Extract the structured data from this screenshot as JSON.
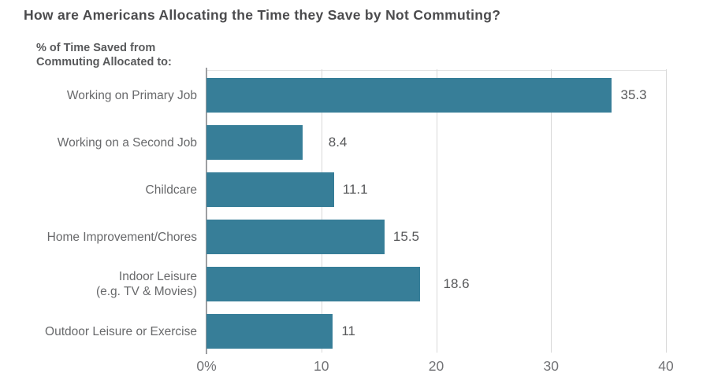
{
  "chart_data": {
    "type": "bar",
    "orientation": "horizontal",
    "title": "How are Americans Allocating the Time they Save by Not Commuting?",
    "axis_note": "% of Time Saved from\nCommuting Allocated to:",
    "categories": [
      "Working on Primary Job",
      "Working on a Second Job",
      "Childcare",
      "Home Improvement/Chores",
      "Indoor Leisure\n(e.g. TV & Movies)",
      "Outdoor Leisure or Exercise"
    ],
    "values": [
      35.3,
      8.4,
      11.1,
      15.5,
      18.6,
      11
    ],
    "value_labels": [
      "35.3",
      "8.4",
      "11.1",
      "15.5",
      "18.6",
      "11"
    ],
    "x_ticks": [
      {
        "value": 0,
        "label": "0%"
      },
      {
        "value": 10,
        "label": "10"
      },
      {
        "value": 20,
        "label": "20"
      },
      {
        "value": 30,
        "label": "30"
      },
      {
        "value": 40,
        "label": "40"
      }
    ],
    "xlim": [
      0,
      40
    ],
    "grid": true,
    "legend": "none",
    "colors": {
      "bar": "#377E98",
      "gridline": "#d8d8d8",
      "axis_line": "#9d9fa2",
      "title_text": "#4b4b4d",
      "note_text": "#58595b",
      "category_text": "#68696b",
      "value_text": "#57585a",
      "tick_text": "#727376",
      "background": "#ffffff"
    }
  }
}
